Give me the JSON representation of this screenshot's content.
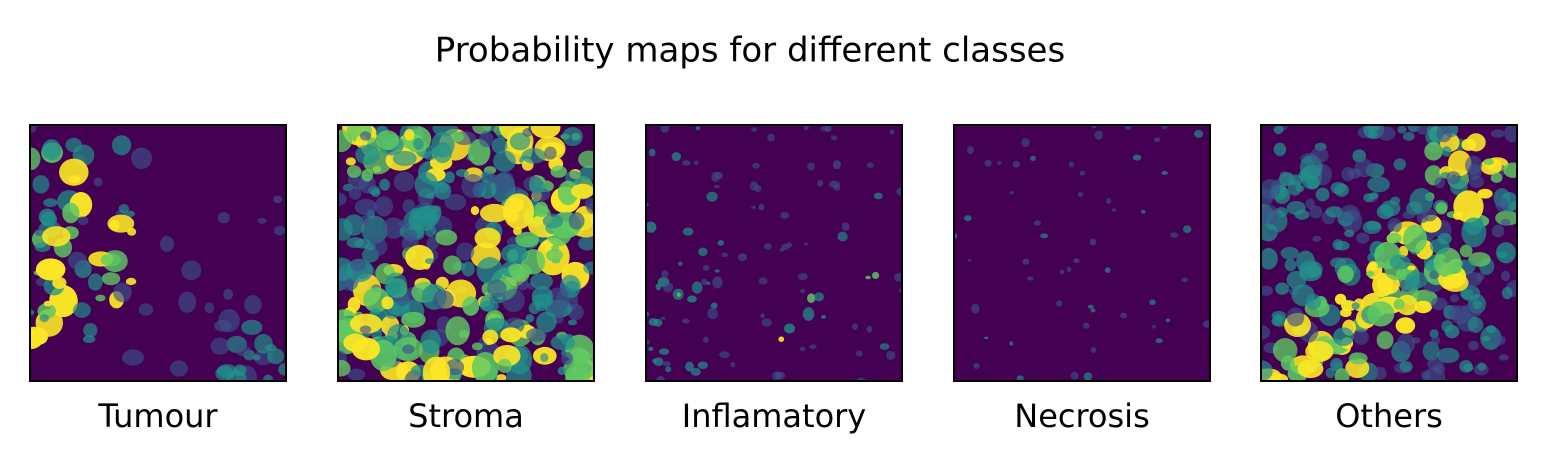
{
  "title": "Probability maps for different classes",
  "panels": [
    {
      "label": "Tumour"
    },
    {
      "label": "Stroma"
    },
    {
      "label": "Inflamatory"
    },
    {
      "label": "Necrosis"
    },
    {
      "label": "Others"
    }
  ]
}
